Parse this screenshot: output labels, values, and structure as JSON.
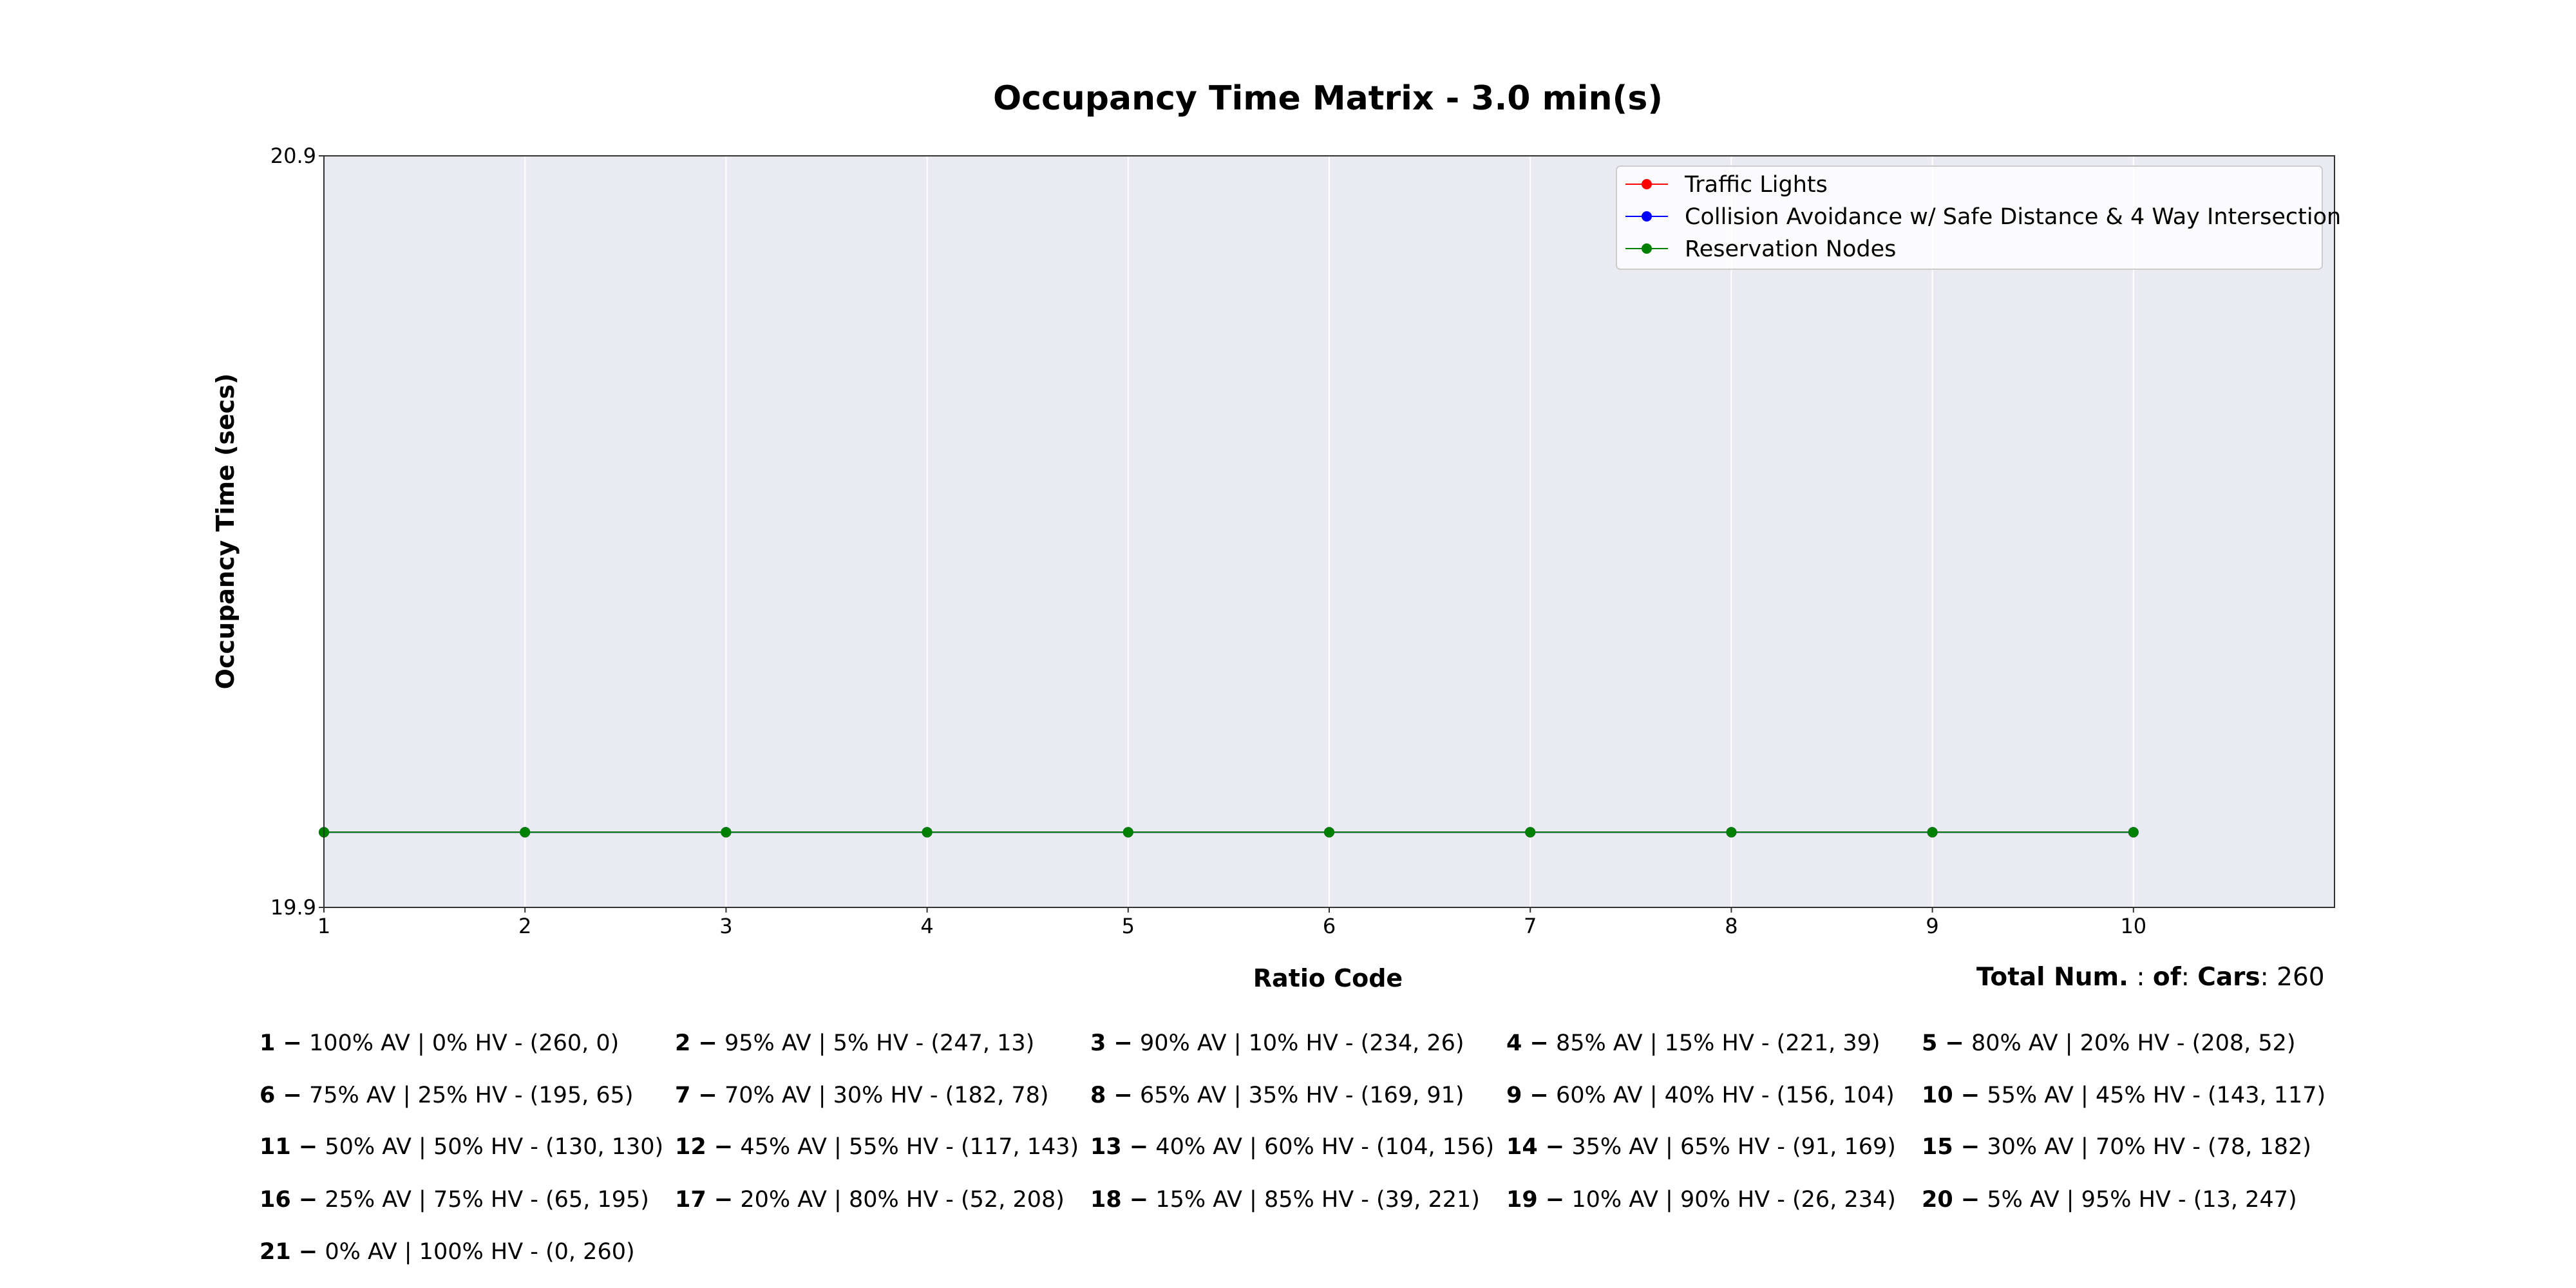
{
  "chart_data": {
    "type": "line",
    "title": "Occupancy Time Matrix - 3.0 min(s)",
    "xlabel": "Ratio Code",
    "ylabel": "Occupancy Time (secs)",
    "x": [
      1,
      2,
      3,
      4,
      5,
      6,
      7,
      8,
      9,
      10
    ],
    "xlim": [
      1,
      11
    ],
    "ylim": [
      19.9,
      20.9
    ],
    "xticks": [
      "1",
      "2",
      "3",
      "4",
      "5",
      "6",
      "7",
      "8",
      "9",
      "10"
    ],
    "yticks": [
      "20.9",
      "19.9"
    ],
    "grid": true,
    "legend_position": "top-right",
    "series": [
      {
        "name": "Traffic Lights",
        "color": "#ff0000",
        "values": [
          20.0,
          20.0,
          20.0,
          20.0,
          20.0,
          20.0,
          20.0,
          20.0,
          20.0,
          20.0
        ]
      },
      {
        "name": "Collision Avoidance w/ Safe Distance & 4 Way Intersection",
        "color": "#0000ff",
        "values": [
          20.0,
          20.0,
          20.0,
          20.0,
          20.0,
          20.0,
          20.0,
          20.0,
          20.0,
          20.0
        ]
      },
      {
        "name": "Reservation Nodes",
        "color": "#008000",
        "values": [
          20.0,
          20.0,
          20.0,
          20.0,
          20.0,
          20.0,
          20.0,
          20.0,
          20.0,
          20.0
        ]
      }
    ],
    "total_cars": {
      "label_parts": [
        "Total Num.",
        " : ",
        "of",
        ": ",
        "Cars",
        ": "
      ],
      "value": "260"
    },
    "ratio_codes": [
      {
        "code": "1 −",
        "text": " 100% AV | 0% HV - (260, 0)"
      },
      {
        "code": "2 −",
        "text": " 95% AV | 5% HV - (247, 13)"
      },
      {
        "code": "3 −",
        "text": " 90% AV | 10% HV - (234, 26)"
      },
      {
        "code": "4 −",
        "text": " 85% AV | 15% HV - (221, 39)"
      },
      {
        "code": "5 −",
        "text": " 80% AV | 20% HV - (208, 52)"
      },
      {
        "code": "6 −",
        "text": " 75% AV | 25% HV - (195, 65)"
      },
      {
        "code": "7 −",
        "text": " 70% AV | 30% HV - (182, 78)"
      },
      {
        "code": "8 −",
        "text": " 65% AV | 35% HV - (169, 91)"
      },
      {
        "code": "9 −",
        "text": " 60% AV | 40% HV - (156, 104)"
      },
      {
        "code": "10 −",
        "text": " 55% AV | 45% HV - (143, 117)"
      },
      {
        "code": "11 −",
        "text": " 50% AV | 50% HV - (130, 130)"
      },
      {
        "code": "12 −",
        "text": " 45% AV | 55% HV - (117, 143)"
      },
      {
        "code": "13 −",
        "text": " 40% AV | 60% HV - (104, 156)"
      },
      {
        "code": "14 −",
        "text": " 35% AV | 65% HV - (91, 169)"
      },
      {
        "code": "15 −",
        "text": " 30% AV | 70% HV - (78, 182)"
      },
      {
        "code": "16 −",
        "text": " 25% AV | 75% HV - (65, 195)"
      },
      {
        "code": "17 −",
        "text": " 20% AV | 80% HV - (52, 208)"
      },
      {
        "code": "18 −",
        "text": " 15% AV | 85% HV - (39, 221)"
      },
      {
        "code": "19 −",
        "text": " 10% AV | 90% HV - (26, 234)"
      },
      {
        "code": "20 −",
        "text": " 5% AV | 95% HV - (13, 247)"
      },
      {
        "code": "21 −",
        "text": " 0% AV | 100% HV - (0, 260)"
      }
    ],
    "colors": {
      "plot_bg": "#eaeaf2",
      "grid": "#ffffff",
      "axis": "#333333"
    }
  }
}
